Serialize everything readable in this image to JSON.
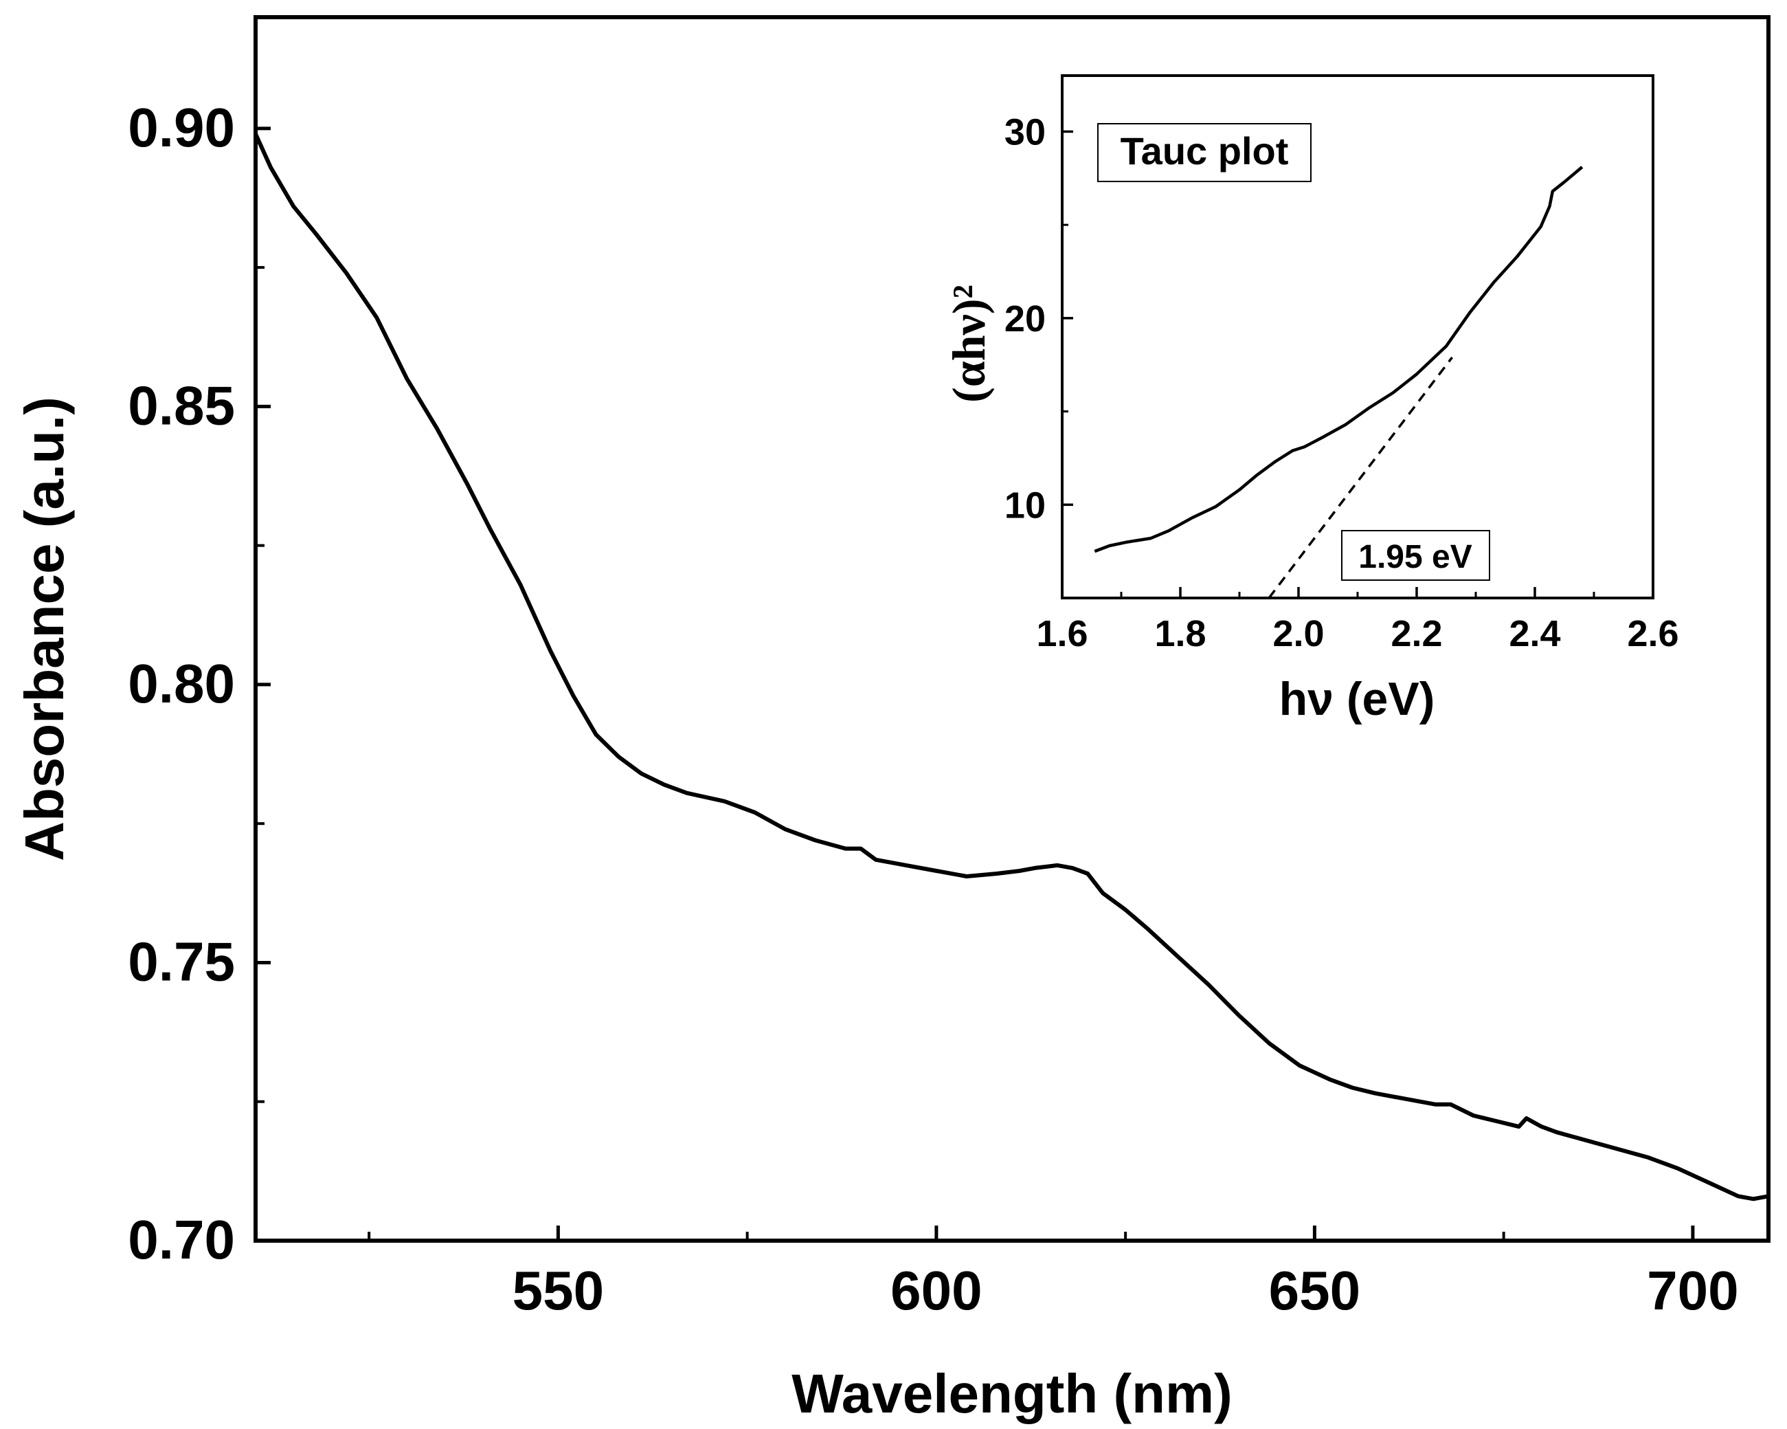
{
  "chart_data": [
    {
      "id": "main",
      "type": "line",
      "title": "",
      "xlabel": "Wavelength (nm)",
      "ylabel": "Absorbance (a.u.)",
      "xlim": [
        510,
        710
      ],
      "ylim": [
        0.7,
        0.92
      ],
      "xticks": [
        550,
        600,
        650,
        700
      ],
      "xtick_labels": [
        "550",
        "600",
        "650",
        "700"
      ],
      "yticks": [
        0.7,
        0.75,
        0.8,
        0.85,
        0.9
      ],
      "ytick_labels": [
        "0.70",
        "0.75",
        "0.80",
        "0.85",
        "0.90"
      ],
      "grid": false,
      "series": [
        {
          "name": "Absorbance",
          "x": [
            510,
            512,
            515,
            518,
            522,
            526,
            530,
            534,
            538,
            541,
            545,
            549,
            552,
            555,
            558,
            561,
            564,
            567,
            572,
            576,
            580,
            584,
            588,
            590,
            592,
            596,
            600,
            604,
            608,
            611,
            613,
            616,
            618,
            620,
            622,
            625,
            628,
            632,
            636,
            640,
            644,
            648,
            652,
            655,
            658,
            662,
            666,
            668,
            671,
            674,
            677,
            678,
            680,
            682,
            686,
            690,
            694,
            698,
            702,
            706,
            708,
            710
          ],
          "values": [
            0.899,
            0.893,
            0.886,
            0.881,
            0.874,
            0.866,
            0.855,
            0.846,
            0.836,
            0.828,
            0.818,
            0.806,
            0.798,
            0.791,
            0.787,
            0.784,
            0.782,
            0.7805,
            0.779,
            0.777,
            0.774,
            0.772,
            0.7705,
            0.7705,
            0.7685,
            0.7675,
            0.7665,
            0.7655,
            0.766,
            0.7665,
            0.767,
            0.7675,
            0.767,
            0.766,
            0.7625,
            0.7595,
            0.756,
            0.751,
            0.746,
            0.7405,
            0.7355,
            0.7315,
            0.729,
            0.7275,
            0.7265,
            0.7255,
            0.7245,
            0.7245,
            0.7225,
            0.7215,
            0.7205,
            0.722,
            0.7205,
            0.7195,
            0.718,
            0.7165,
            0.715,
            0.713,
            0.7105,
            0.708,
            0.7075,
            0.708
          ]
        }
      ]
    },
    {
      "id": "inset",
      "type": "line",
      "title": "Tauc plot",
      "xlabel": "hν (eV)",
      "ylabel": "(αhν)²",
      "xlim": [
        1.6,
        2.6
      ],
      "ylim": [
        5,
        33
      ],
      "xticks": [
        1.6,
        1.8,
        2.0,
        2.2,
        2.4,
        2.6
      ],
      "xtick_labels": [
        "1.6",
        "1.8",
        "2.0",
        "2.2",
        "2.4",
        "2.6"
      ],
      "yticks": [
        10,
        20,
        30
      ],
      "ytick_labels": [
        "10",
        "20",
        "30"
      ],
      "annotation": "1.95 eV",
      "grid": false,
      "series": [
        {
          "name": "Tauc",
          "x": [
            1.655,
            1.68,
            1.71,
            1.75,
            1.78,
            1.82,
            1.86,
            1.9,
            1.93,
            1.96,
            1.99,
            2.01,
            2.04,
            2.08,
            2.12,
            2.16,
            2.2,
            2.22,
            2.25,
            2.29,
            2.33,
            2.37,
            2.41,
            2.425,
            2.43,
            2.45,
            2.48
          ],
          "values": [
            7.5,
            7.8,
            8.0,
            8.2,
            8.6,
            9.3,
            9.9,
            10.8,
            11.6,
            12.3,
            12.9,
            13.1,
            13.6,
            14.3,
            15.2,
            16.0,
            17.0,
            17.6,
            18.5,
            20.3,
            21.9,
            23.3,
            24.9,
            26.0,
            26.8,
            27.3,
            28.1
          ]
        },
        {
          "name": "Linear fit",
          "style": "dashed",
          "x": [
            1.95,
            2.26
          ],
          "values": [
            5.0,
            17.9
          ]
        }
      ]
    }
  ]
}
